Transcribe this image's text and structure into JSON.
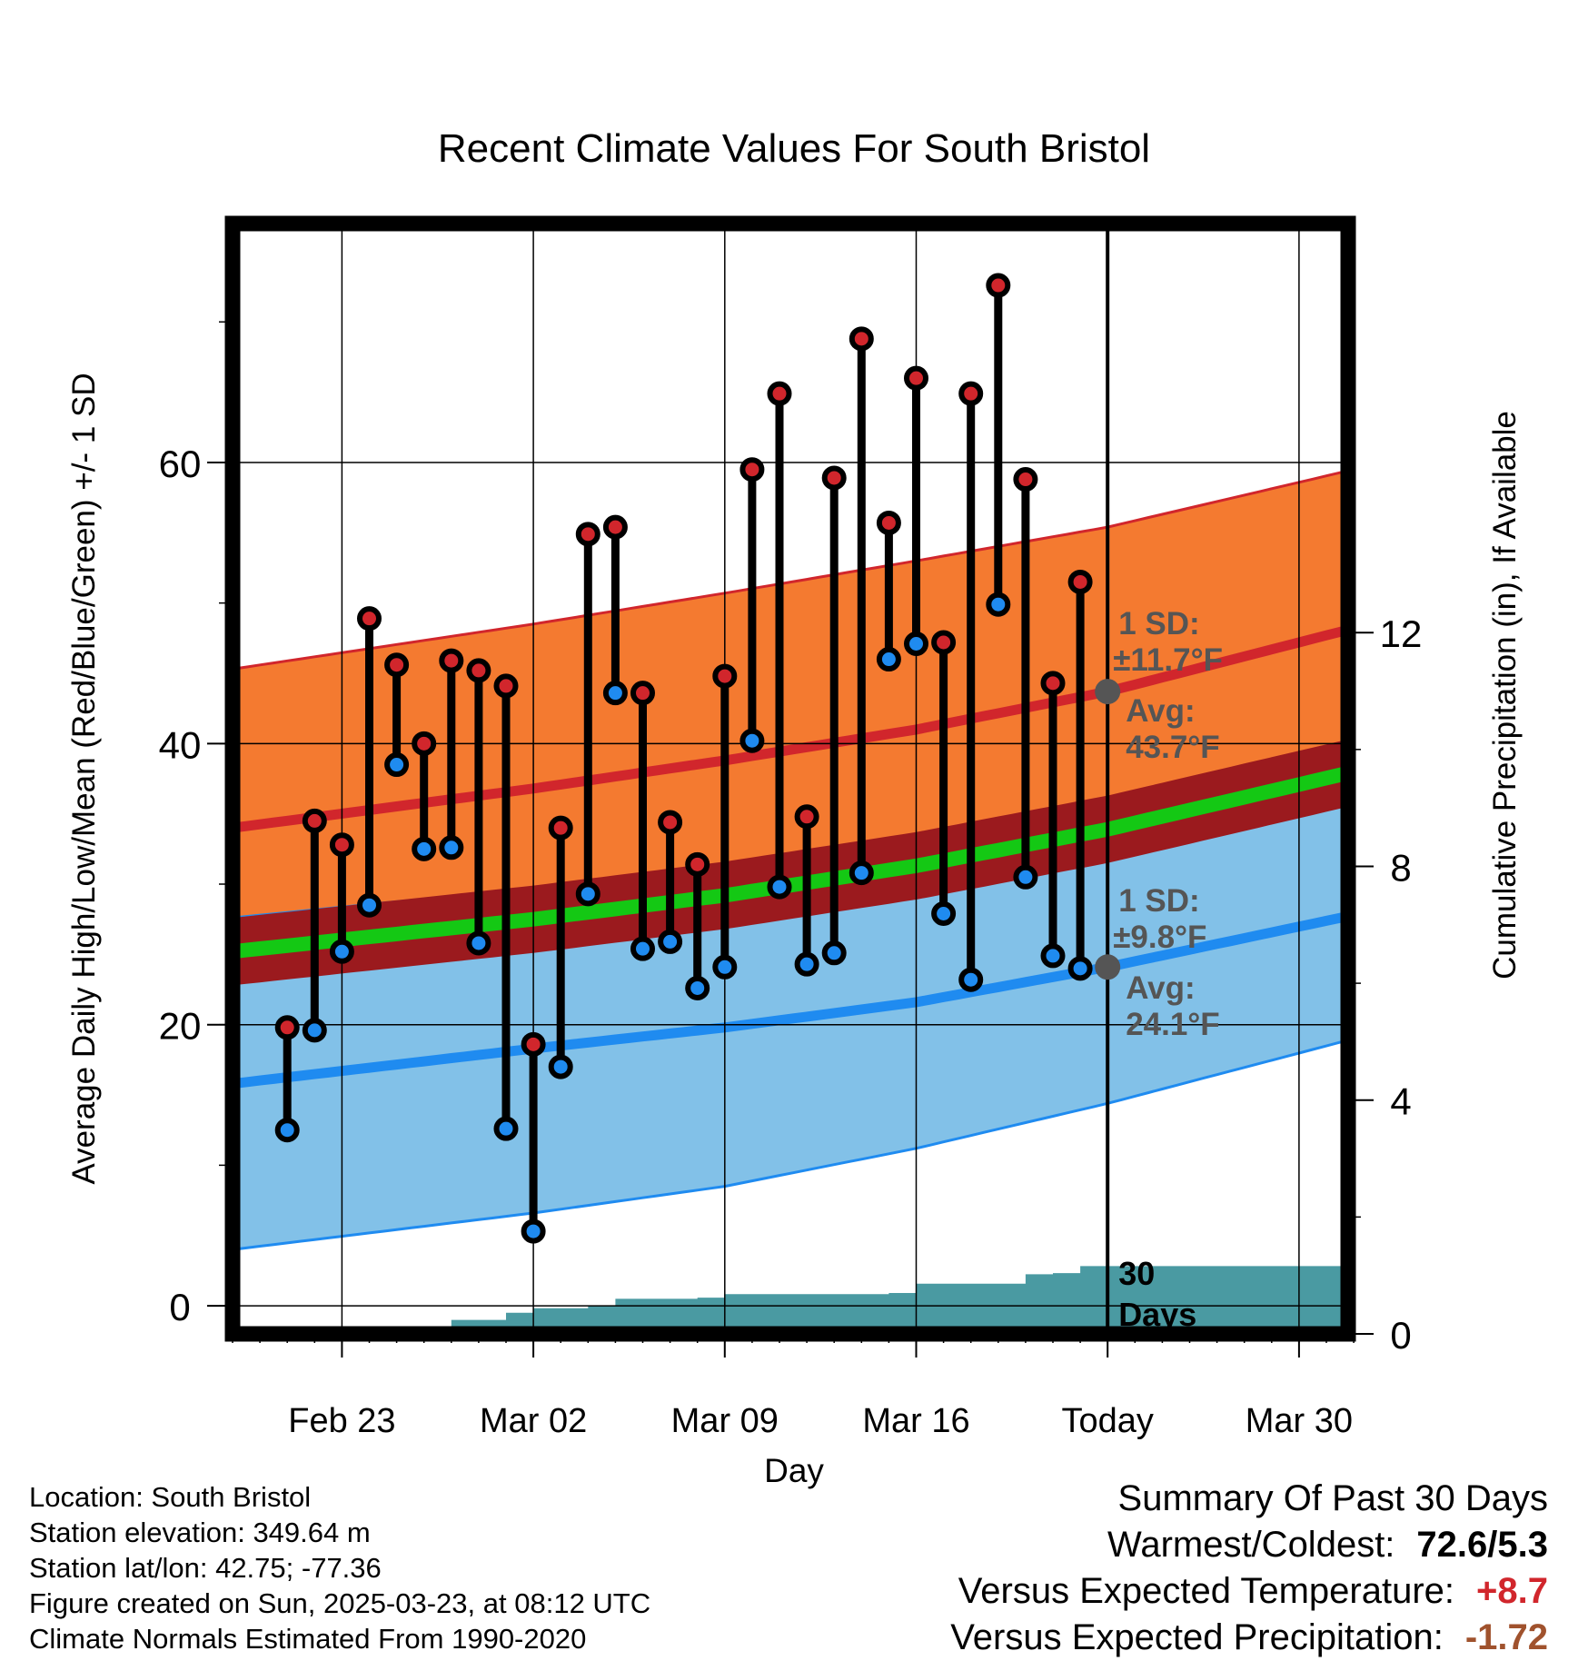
{
  "chart_data": {
    "type": "line",
    "title": "Recent Climate Values For South Bristol",
    "xlabel": "Day",
    "ylabel": "Average Daily High/Low/Mean (Red/Blue/Green) +/- 1 SD",
    "y2label": "Cumulative Precipitation (in), If Available",
    "xlim": [
      "2025-02-19",
      "2025-04-01"
    ],
    "ylim": [
      -2,
      77
    ],
    "y2lim": [
      0,
      19
    ],
    "x_ticks": [
      {
        "date": "2025-02-23",
        "label": "Feb 23"
      },
      {
        "date": "2025-03-02",
        "label": "Mar 02"
      },
      {
        "date": "2025-03-09",
        "label": "Mar 09"
      },
      {
        "date": "2025-03-16",
        "label": "Mar 16"
      },
      {
        "date": "2025-03-23",
        "label": "Today"
      },
      {
        "date": "2025-03-30",
        "label": "Mar 30"
      }
    ],
    "y_ticks": [
      0,
      20,
      40,
      60
    ],
    "y2_ticks": [
      0,
      4,
      8,
      12
    ],
    "grid": true,
    "today": "2025-03-23",
    "today_label": "30 Days",
    "normal_high": {
      "dates": [
        "2025-02-19",
        "2025-03-02",
        "2025-03-09",
        "2025-03-16",
        "2025-03-23",
        "2025-04-01"
      ],
      "avg": [
        34,
        36.8,
        38.8,
        41,
        43.7,
        48.2
      ],
      "sd_upper": [
        45.3,
        48.5,
        50.7,
        53,
        55.4,
        59.5
      ],
      "sd_lower": [
        27.7,
        29.8,
        31,
        32.3,
        33.6,
        36.4
      ]
    },
    "normal_low": {
      "dates": [
        "2025-02-19",
        "2025-03-02",
        "2025-03-09",
        "2025-03-16",
        "2025-03-23",
        "2025-04-01"
      ],
      "avg": [
        15.8,
        18.3,
        19.8,
        21.6,
        24.1,
        27.8
      ],
      "sd_upper": [
        27.7,
        29.8,
        31,
        32.3,
        33.6,
        36.4
      ],
      "sd_lower": [
        4,
        6.6,
        8.5,
        11.2,
        14.4,
        19
      ]
    },
    "normal_mean": {
      "dates": [
        "2025-02-19",
        "2025-03-02",
        "2025-03-09",
        "2025-03-16",
        "2025-03-23",
        "2025-04-01"
      ],
      "values": [
        25.2,
        27.5,
        29.2,
        31.3,
        33.9,
        38.0
      ]
    },
    "high_sd_label": [
      "1 SD:",
      "±11.7°F",
      "Avg:",
      "43.7°F"
    ],
    "low_sd_label": [
      "1 SD:",
      "±9.8°F",
      "Avg:",
      "24.1°F"
    ],
    "daily": [
      {
        "date": "2025-02-21",
        "high": 19.8,
        "low": 12.5
      },
      {
        "date": "2025-02-22",
        "high": 34.5,
        "low": 19.6
      },
      {
        "date": "2025-02-23",
        "high": 32.8,
        "low": 25.2
      },
      {
        "date": "2025-02-24",
        "high": 48.9,
        "low": 28.5
      },
      {
        "date": "2025-02-25",
        "high": 45.6,
        "low": 38.5
      },
      {
        "date": "2025-02-26",
        "high": 40.0,
        "low": 32.5
      },
      {
        "date": "2025-02-27",
        "high": 45.9,
        "low": 32.6
      },
      {
        "date": "2025-02-28",
        "high": 45.2,
        "low": 25.8
      },
      {
        "date": "2025-03-01",
        "high": 44.1,
        "low": 12.6
      },
      {
        "date": "2025-03-02",
        "high": 18.6,
        "low": 5.3
      },
      {
        "date": "2025-03-03",
        "high": 34.0,
        "low": 17.0
      },
      {
        "date": "2025-03-04",
        "high": 54.9,
        "low": 29.3
      },
      {
        "date": "2025-03-05",
        "high": 55.4,
        "low": 43.6
      },
      {
        "date": "2025-03-06",
        "high": 43.6,
        "low": 25.4
      },
      {
        "date": "2025-03-07",
        "high": 34.4,
        "low": 25.9
      },
      {
        "date": "2025-03-08",
        "high": 31.4,
        "low": 22.6
      },
      {
        "date": "2025-03-09",
        "high": 44.8,
        "low": 24.1
      },
      {
        "date": "2025-03-10",
        "high": 59.5,
        "low": 40.2
      },
      {
        "date": "2025-03-11",
        "high": 64.9,
        "low": 29.8
      },
      {
        "date": "2025-03-12",
        "high": 34.8,
        "low": 24.3
      },
      {
        "date": "2025-03-13",
        "high": 58.9,
        "low": 25.1
      },
      {
        "date": "2025-03-14",
        "high": 68.8,
        "low": 30.8
      },
      {
        "date": "2025-03-15",
        "high": 55.7,
        "low": 46.0
      },
      {
        "date": "2025-03-16",
        "high": 66.0,
        "low": 47.1
      },
      {
        "date": "2025-03-17",
        "high": 47.2,
        "low": 27.9
      },
      {
        "date": "2025-03-18",
        "high": 64.9,
        "low": 23.2
      },
      {
        "date": "2025-03-19",
        "high": 72.6,
        "low": 49.9
      },
      {
        "date": "2025-03-20",
        "high": 58.8,
        "low": 30.5
      },
      {
        "date": "2025-03-21",
        "high": 44.3,
        "low": 24.9
      },
      {
        "date": "2025-03-22",
        "high": 51.5,
        "low": 24.0
      }
    ],
    "precip_cumulative": {
      "dates": [
        "2025-02-19",
        "2025-02-26",
        "2025-02-27",
        "2025-03-01",
        "2025-03-02",
        "2025-03-04",
        "2025-03-05",
        "2025-03-08",
        "2025-03-09",
        "2025-03-15",
        "2025-03-16",
        "2025-03-19",
        "2025-03-20",
        "2025-03-21",
        "2025-03-22",
        "2025-04-01"
      ],
      "values": [
        0,
        0,
        0.24,
        0.36,
        0.44,
        0.48,
        0.6,
        0.62,
        0.68,
        0.7,
        0.86,
        0.86,
        1.02,
        1.04,
        1.16,
        1.16
      ]
    },
    "colors": {
      "high_band": "#f47a30",
      "high_line": "#d1262c",
      "low_band": "#82c1e8",
      "low_line": "#1f8bf0",
      "overlap_band": "#9b1a1e",
      "mean_line": "#14c814",
      "precip_fill": "#4a9aa2",
      "high_marker": "#d1262c",
      "low_marker": "#1f8bf0",
      "annotation": "#555555"
    }
  },
  "info": {
    "location": "Location: South Bristol",
    "elevation": "Station elevation: 349.64 m",
    "latlon": "Station lat/lon: 42.75; -77.36",
    "created": "Figure created on Sun, 2025-03-23, at 08:12 UTC",
    "normals": "Climate Normals Estimated From 1990-2020"
  },
  "summary": {
    "title": "Summary Of Past 30 Days",
    "warmest_label": "Warmest/Coldest:",
    "warmest_value": "72.6/5.3",
    "temp_label": "Versus Expected Temperature:",
    "temp_value": "+8.7",
    "temp_color": "#d1262c",
    "precip_label": "Versus Expected Precipitation:",
    "precip_value": "-1.72",
    "precip_color": "#a0522d"
  }
}
